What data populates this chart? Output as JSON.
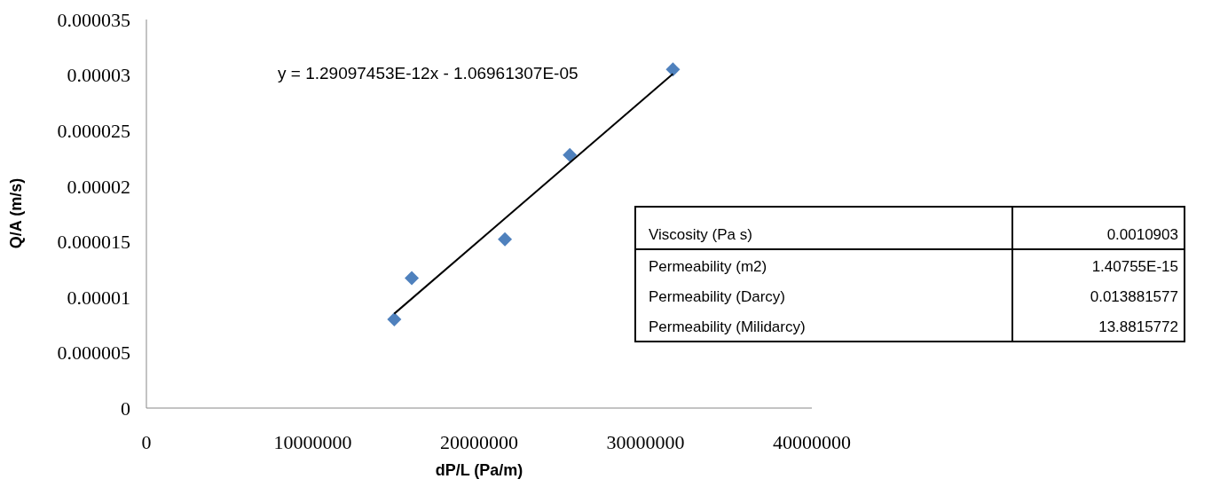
{
  "chart_data": {
    "type": "scatter",
    "xlabel": "dP/L (Pa/m)",
    "ylabel": "Q/A (m/s)",
    "xlim": [
      0,
      40000000
    ],
    "xticks": [
      0,
      10000000,
      20000000,
      30000000,
      40000000
    ],
    "ylim": [
      0,
      3.5e-05
    ],
    "yticks": [
      0,
      {
        "value": 5e-06,
        "label": "0.000005"
      },
      {
        "value": 1e-05,
        "label": "0.00001"
      },
      {
        "value": 1.5e-05,
        "label": "0.000015"
      },
      {
        "value": 2e-05,
        "label": "0.00002"
      },
      {
        "value": 2.5e-05,
        "label": "0.000025"
      },
      {
        "value": 3e-05,
        "label": "0.00003"
      },
      {
        "value": 3.5e-05,
        "label": "0.000035"
      }
    ],
    "grid": false,
    "legend": false,
    "marker": "diamond",
    "series": [
      {
        "color": "#4f81bd",
        "x": [
          14900000,
          15950000,
          21550000,
          25450000,
          31650000
        ],
        "values": [
          8e-06,
          1.17e-05,
          1.52e-05,
          2.28e-05,
          3.05e-05
        ]
      },
      {
        "type": "line",
        "color": "#000000",
        "line_style": "solid",
        "marker": "none",
        "x": [
          14900000,
          31650000
        ],
        "values": [
          8.5e-06,
          3.01e-05
        ]
      }
    ],
    "annotations": [
      "y = 1.29097453E-12x - 1.06961307E-05",
      "Viscosity (Pa s)",
      "0.0010903",
      "Permeability (m2)",
      "1.40755E-15",
      "Permeability (Darcy)",
      "0.013881577",
      "Permeability (Milidarcy)",
      "13.8815772"
    ]
  }
}
